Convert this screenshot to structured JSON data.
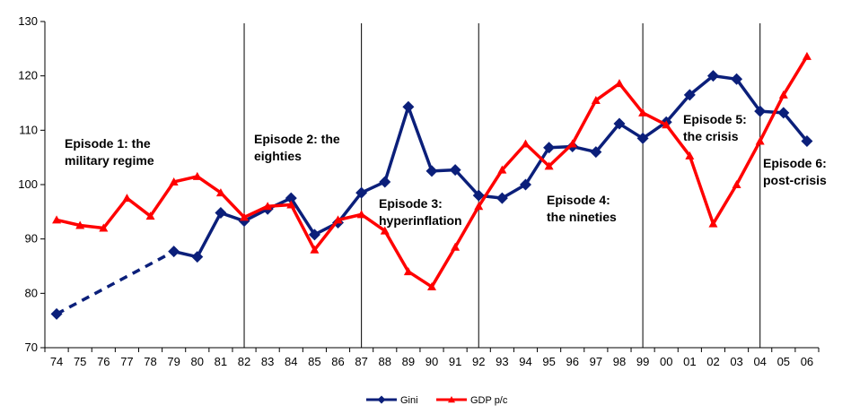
{
  "chart_data": {
    "type": "line",
    "title": "",
    "xlabel": "",
    "ylabel": "",
    "ylim": [
      70,
      130
    ],
    "yticks": [
      70,
      80,
      90,
      100,
      110,
      120,
      130
    ],
    "grid": false,
    "legend_position": "bottom-center",
    "categories": [
      "74",
      "75",
      "76",
      "77",
      "78",
      "79",
      "80",
      "81",
      "82",
      "83",
      "84",
      "85",
      "86",
      "87",
      "88",
      "89",
      "90",
      "91",
      "92",
      "93",
      "94",
      "95",
      "96",
      "97",
      "98",
      "99",
      "00",
      "01",
      "02",
      "03",
      "04",
      "05",
      "06"
    ],
    "series": [
      {
        "name": "Gini",
        "color": "#0b1f7a",
        "marker": "diamond",
        "dashed_segment": [
          "74",
          "79"
        ],
        "values": [
          76.2,
          null,
          null,
          null,
          null,
          87.7,
          86.7,
          94.8,
          93.3,
          95.5,
          97.5,
          90.8,
          93.0,
          98.5,
          100.5,
          114.3,
          102.5,
          102.7,
          98.0,
          97.5,
          100.0,
          106.8,
          107.0,
          106.0,
          111.2,
          108.5,
          111.5,
          116.5,
          120.0,
          119.4,
          113.5,
          113.2,
          108.0
        ]
      },
      {
        "name": "GDP p/c",
        "color": "#ff0000",
        "marker": "triangle",
        "values": [
          93.5,
          92.5,
          92.0,
          97.5,
          94.2,
          100.5,
          101.5,
          98.5,
          94.0,
          96.0,
          96.3,
          88.0,
          93.5,
          94.5,
          91.5,
          84.0,
          81.2,
          88.5,
          96.0,
          102.7,
          107.5,
          103.4,
          107.5,
          115.5,
          118.6,
          113.2,
          111.0,
          105.3,
          92.8,
          100.0,
          108.0,
          116.5,
          123.6
        ]
      }
    ],
    "episodes": [
      {
        "lines": [
          "Episode 1: the",
          "military regime"
        ]
      },
      {
        "lines": [
          "Episode 2: the",
          "eighties"
        ]
      },
      {
        "lines": [
          "Episode 3:",
          "hyperinflation"
        ]
      },
      {
        "lines": [
          "Episode 4:",
          "the nineties"
        ]
      },
      {
        "lines": [
          "Episode 5:",
          "the crisis"
        ]
      },
      {
        "lines": [
          "Episode 6:",
          "post-crisis"
        ]
      }
    ],
    "episode_dividers": [
      "82",
      "87",
      "92",
      "99",
      "04"
    ]
  }
}
